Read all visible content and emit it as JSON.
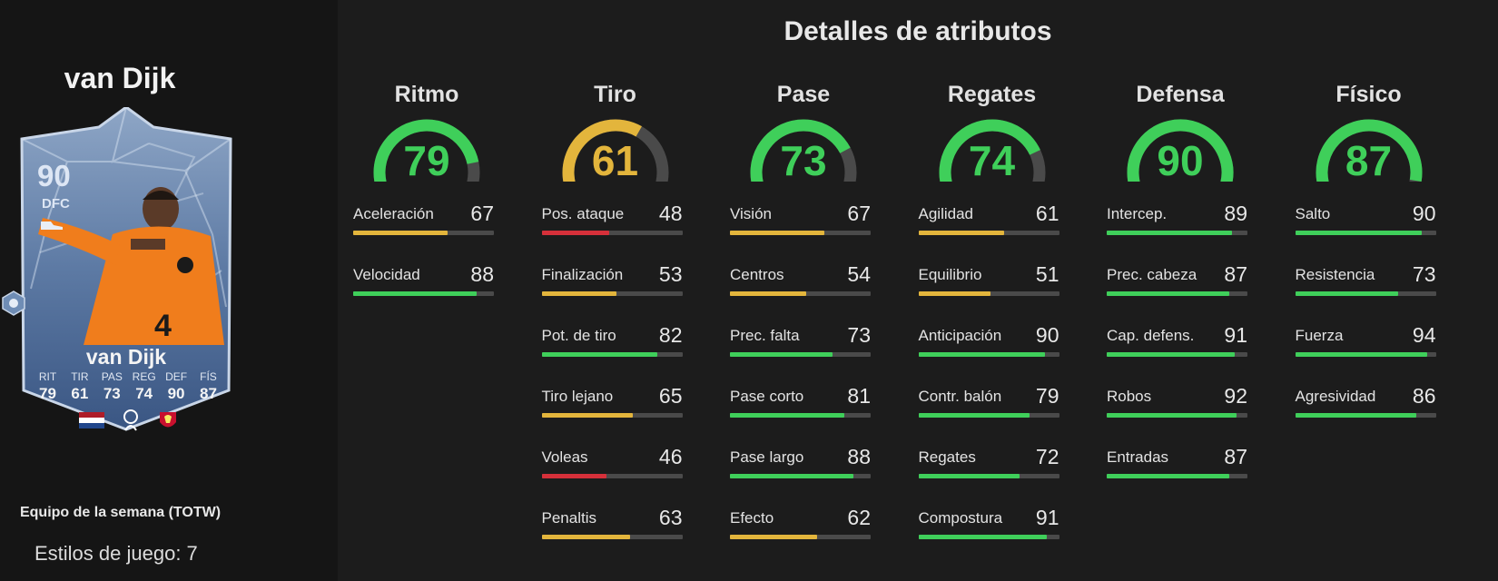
{
  "colors": {
    "green": "#3fcf5a",
    "yellow": "#e3b53c",
    "red": "#d6303a",
    "track": "#4a4a4a",
    "background": "#1c1c1c",
    "panel": "#151515"
  },
  "player": {
    "name": "van Dijk",
    "card": {
      "rating": "90",
      "position": "DFC",
      "name": "van Dijk",
      "stats": [
        {
          "label": "RIT",
          "value": "79"
        },
        {
          "label": "TIR",
          "value": "61"
        },
        {
          "label": "PAS",
          "value": "73"
        },
        {
          "label": "REG",
          "value": "74"
        },
        {
          "label": "DEF",
          "value": "90"
        },
        {
          "label": "FÍS",
          "value": "87"
        }
      ],
      "icons": [
        "boot-icon",
        "netherlands-flag-icon",
        "premier-league-icon",
        "liverpool-crest-icon",
        "playstyle-badge-icon"
      ]
    },
    "promo": "Equipo de la semana (TOTW)",
    "playstyles": "Estilos de juego: 7"
  },
  "main": {
    "title": "Detalles de atributos",
    "categories": [
      {
        "name": "Ritmo",
        "value": 79,
        "color": "green",
        "attributes": [
          {
            "label": "Aceleración",
            "value": 67,
            "color": "yellow"
          },
          {
            "label": "Velocidad",
            "value": 88,
            "color": "green"
          }
        ]
      },
      {
        "name": "Tiro",
        "value": 61,
        "color": "yellow",
        "attributes": [
          {
            "label": "Pos. ataque",
            "value": 48,
            "color": "red"
          },
          {
            "label": "Finalización",
            "value": 53,
            "color": "yellow"
          },
          {
            "label": "Pot. de tiro",
            "value": 82,
            "color": "green"
          },
          {
            "label": "Tiro lejano",
            "value": 65,
            "color": "yellow"
          },
          {
            "label": "Voleas",
            "value": 46,
            "color": "red"
          },
          {
            "label": "Penaltis",
            "value": 63,
            "color": "yellow"
          }
        ]
      },
      {
        "name": "Pase",
        "value": 73,
        "color": "green",
        "attributes": [
          {
            "label": "Visión",
            "value": 67,
            "color": "yellow"
          },
          {
            "label": "Centros",
            "value": 54,
            "color": "yellow"
          },
          {
            "label": "Prec. falta",
            "value": 73,
            "color": "green"
          },
          {
            "label": "Pase corto",
            "value": 81,
            "color": "green"
          },
          {
            "label": "Pase largo",
            "value": 88,
            "color": "green"
          },
          {
            "label": "Efecto",
            "value": 62,
            "color": "yellow"
          }
        ]
      },
      {
        "name": "Regates",
        "value": 74,
        "color": "green",
        "attributes": [
          {
            "label": "Agilidad",
            "value": 61,
            "color": "yellow"
          },
          {
            "label": "Equilibrio",
            "value": 51,
            "color": "yellow"
          },
          {
            "label": "Anticipación",
            "value": 90,
            "color": "green"
          },
          {
            "label": "Contr. balón",
            "value": 79,
            "color": "green"
          },
          {
            "label": "Regates",
            "value": 72,
            "color": "green"
          },
          {
            "label": "Compostura",
            "value": 91,
            "color": "green"
          }
        ]
      },
      {
        "name": "Defensa",
        "value": 90,
        "color": "green",
        "attributes": [
          {
            "label": "Intercep.",
            "value": 89,
            "color": "green"
          },
          {
            "label": "Prec. cabeza",
            "value": 87,
            "color": "green"
          },
          {
            "label": "Cap. defens.",
            "value": 91,
            "color": "green"
          },
          {
            "label": "Robos",
            "value": 92,
            "color": "green"
          },
          {
            "label": "Entradas",
            "value": 87,
            "color": "green"
          }
        ]
      },
      {
        "name": "Físico",
        "value": 87,
        "color": "green",
        "attributes": [
          {
            "label": "Salto",
            "value": 90,
            "color": "green"
          },
          {
            "label": "Resistencia",
            "value": 73,
            "color": "green"
          },
          {
            "label": "Fuerza",
            "value": 94,
            "color": "green"
          },
          {
            "label": "Agresividad",
            "value": 86,
            "color": "green"
          }
        ]
      }
    ]
  }
}
